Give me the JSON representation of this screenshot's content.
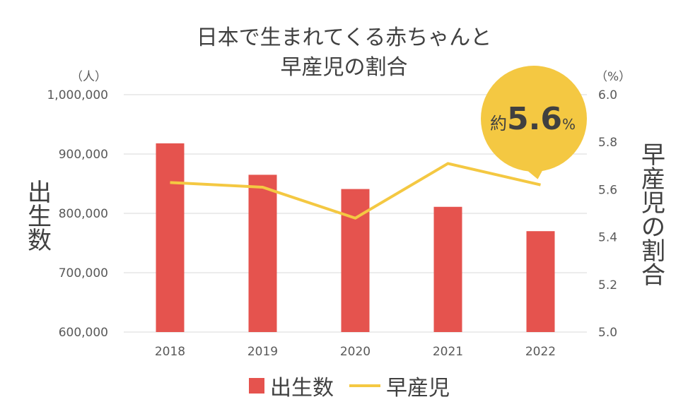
{
  "chart_data": {
    "type": "bar+line",
    "title_line1": "日本で生まれてくる赤ちゃんと",
    "title_line2": "早産児の割合",
    "categories": [
      "2018",
      "2019",
      "2020",
      "2021",
      "2022"
    ],
    "series": [
      {
        "name": "出生数",
        "type": "bar",
        "axis": "left",
        "values": [
          918000,
          865000,
          841000,
          811000,
          770000
        ]
      },
      {
        "name": "早産児",
        "type": "line",
        "axis": "right",
        "values": [
          5.63,
          5.61,
          5.48,
          5.71,
          5.62
        ]
      }
    ],
    "y_left": {
      "unit": "（人）",
      "label": "出生数",
      "min": 600000,
      "max": 1000000,
      "ticks": [
        "600,000",
        "700,000",
        "800,000",
        "900,000",
        "1,000,000"
      ]
    },
    "y_right": {
      "unit": "（%）",
      "label": "早産児の割合",
      "min": 5.0,
      "max": 6.0,
      "ticks": [
        "5.0",
        "5.2",
        "5.4",
        "5.6",
        "5.8",
        "6.0"
      ]
    },
    "callout": {
      "prefix": "約",
      "value": "5.6",
      "suffix": "%"
    },
    "gridlines": true,
    "legend_position": "bottom",
    "colors": {
      "bar": "#e5534e",
      "line": "#f4c842",
      "callout": "#f4c842",
      "grid": "#d9d9d9"
    }
  }
}
